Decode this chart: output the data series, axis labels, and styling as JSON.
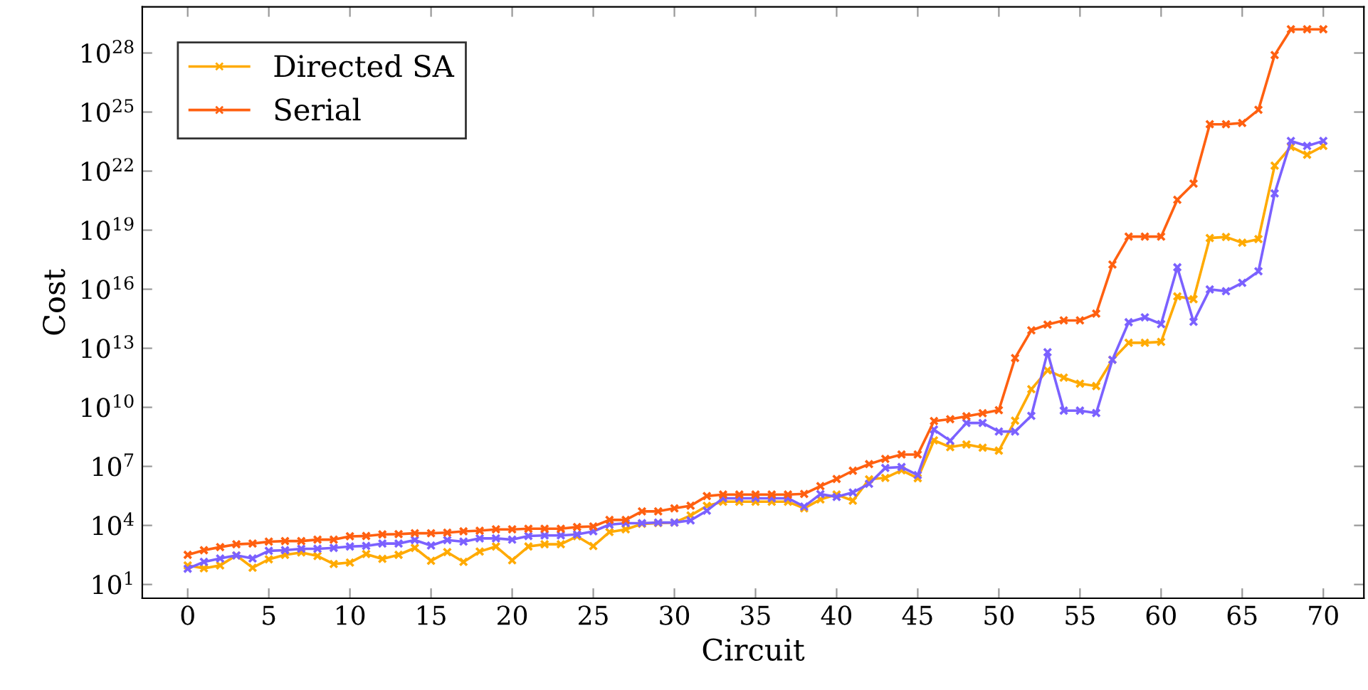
{
  "chart_data": {
    "type": "line",
    "xlabel": "Circuit",
    "ylabel": "Cost",
    "log": "y",
    "marker": "cross",
    "line_style": "solid",
    "grid": false,
    "legend": "top left",
    "x": [
      0,
      1,
      2,
      3,
      4,
      5,
      6,
      7,
      8,
      9,
      10,
      11,
      12,
      13,
      14,
      15,
      16,
      17,
      18,
      19,
      20,
      21,
      22,
      23,
      24,
      25,
      26,
      27,
      28,
      29,
      30,
      31,
      32,
      33,
      34,
      35,
      36,
      37,
      38,
      39,
      40,
      41,
      42,
      43,
      44,
      45,
      46,
      47,
      48,
      49,
      50,
      51,
      52,
      53,
      54,
      55,
      56,
      57,
      58,
      59,
      60,
      61,
      62,
      63,
      64,
      65,
      66,
      67,
      68,
      69,
      70
    ],
    "xlim": [
      -2.8,
      72.5
    ],
    "xticks": [
      0,
      5,
      10,
      15,
      20,
      25,
      30,
      35,
      40,
      45,
      50,
      55,
      60,
      65,
      70
    ],
    "ylim": [
      2,
      2.2e+30
    ],
    "yticks": [
      {
        "value": 10,
        "label": "10$^{1}$"
      },
      {
        "value": 10000.0,
        "label": "10$^{4}$"
      },
      {
        "value": 10000000.0,
        "label": "10$^{7}$"
      },
      {
        "value": 10000000000.0,
        "label": "10$^{10}$"
      },
      {
        "value": 10000000000000.0,
        "label": "10$^{13}$"
      },
      {
        "value": 1e+16,
        "label": "10$^{16}$"
      },
      {
        "value": 1e+19,
        "label": "10$^{19}$"
      },
      {
        "value": 1e+22,
        "label": "10$^{22}$"
      },
      {
        "value": 1e+25,
        "label": "10$^{25}$"
      },
      {
        "value": 1e+28,
        "label": "10$^{28}$"
      }
    ],
    "series": [
      {
        "name": "Directed SA",
        "color": "#ffaa00",
        "values": [
          93.0,
          66.0,
          93.0,
          300.0,
          71.0,
          190.0,
          320.0,
          420.0,
          280.0,
          110.0,
          130.0,
          350.0,
          200.0,
          320.0,
          720.0,
          160.0,
          440.0,
          140.0,
          470.0,
          850.0,
          170.0,
          850.0,
          1100.0,
          1100.0,
          2800.0,
          890.0,
          4600.0,
          6300.0,
          12000.0,
          13000.0,
          14000.0,
          32000.0,
          98000.0,
          160000.0,
          160000.0,
          160000.0,
          160000.0,
          160000.0,
          74000.0,
          210000.0,
          370000.0,
          180000.0,
          2200000.0,
          2600000.0,
          6300000.0,
          2500000.0,
          210000000.0,
          95000000.0,
          130000000.0,
          89000000.0,
          63000000.0,
          2100000000.0,
          83000000000.0,
          760000000000.0,
          320000000000.0,
          160000000000.0,
          120000000000.0,
          2600000000000.0,
          19000000000000.0,
          19000000000000.0,
          21000000000000.0,
          4300000000000000.0,
          3100000000000000.0,
          4e+18,
          4.5e+18,
          2.3e+18,
          3.5e+18,
          1.9e+22,
          1.7e+23,
          6.8e+22,
          1.9e+23
        ]
      },
      {
        "color": "#7b61ff",
        "values": [
          63.0,
          140.0,
          210.0,
          300.0,
          210.0,
          510.0,
          550.0,
          650.0,
          650.0,
          720.0,
          850.0,
          910.0,
          1200.0,
          1200.0,
          1800.0,
          950.0,
          1800.0,
          1500.0,
          2200.0,
          2200.0,
          1900.0,
          2900.0,
          3100.0,
          3100.0,
          3500.0,
          5000.0,
          11000.0,
          13000.0,
          13000.0,
          14000.0,
          14000.0,
          18000.0,
          56000.0,
          240000.0,
          240000.0,
          240000.0,
          240000.0,
          240000.0,
          91000.0,
          390000.0,
          280000.0,
          470000.0,
          1300000.0,
          8300000.0,
          9300000.0,
          3600000.0,
          740000000.0,
          200000000.0,
          1600000000.0,
          1600000000.0,
          590000000.0,
          590000000.0,
          3700000000.0,
          6300000000000.0,
          6800000000.0,
          6800000000.0,
          5100000000.0,
          2600000000000.0,
          210000000000000.0,
          370000000000000.0,
          170000000000000.0,
          1.3e+17,
          220000000000000.0,
          9800000000000000.0,
          7900000000000000.0,
          2.1e+16,
          8.1e+16,
          7.4e+20,
          3.4e+23,
          1.9e+23,
          3.4e+23
        ]
      },
      {
        "name": "Serial",
        "color": "#ff6010",
        "values": [
          320.0,
          550.0,
          790.0,
          1100.0,
          1200.0,
          1500.0,
          1600.0,
          1600.0,
          1900.0,
          1900.0,
          2800.0,
          2900.0,
          3500.0,
          3600.0,
          4000.0,
          4000.0,
          4300.0,
          5000.0,
          5400.0,
          6300.0,
          6300.0,
          6800.0,
          6800.0,
          6800.0,
          8300.0,
          8900.0,
          19000.0,
          19000.0,
          52000.0,
          52000.0,
          74000.0,
          100000.0,
          310000.0,
          370000.0,
          370000.0,
          370000.0,
          370000.0,
          370000.0,
          400000.0,
          1000000.0,
          2300000.0,
          6000000.0,
          13000000.0,
          24000000.0,
          40000000.0,
          40000000.0,
          2000000000.0,
          2500000000.0,
          3500000000.0,
          5000000000.0,
          7200000000.0,
          3200000000000.0,
          81000000000000.0,
          160000000000000.0,
          260000000000000.0,
          260000000000000.0,
          580000000000000.0,
          1.8e+17,
          4.7e+18,
          4.7e+18,
          4.7e+18,
          3.5e+20,
          2.3e+21,
          2.4e+24,
          2.4e+24,
          2.8e+24,
          1.3e+25,
          7.9e+27,
          1.6e+29,
          1.6e+29,
          1.6e+29
        ]
      }
    ]
  }
}
